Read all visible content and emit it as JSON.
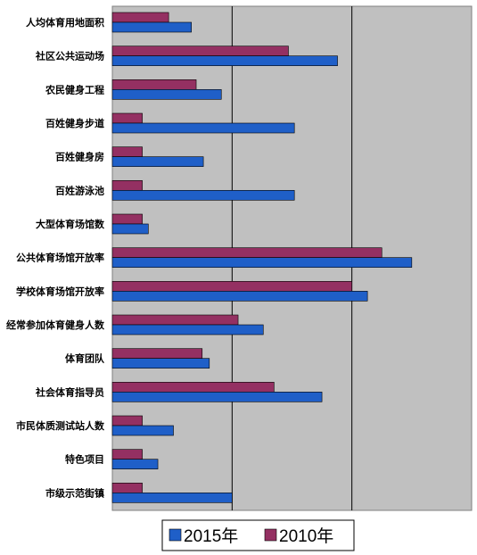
{
  "chart_data": {
    "type": "bar",
    "orientation": "horizontal",
    "categories": [
      "人均体育用地面积",
      "社区公共运动场",
      "农民健身工程",
      "百姓健身步道",
      "百姓健身房",
      "百姓游泳池",
      "大型体育场馆数",
      "公共体育场馆开放率",
      "学校体育场馆开放率",
      "经常参加体育健身人数",
      "体育团队",
      "社会体育指导员",
      "市民体质测试站人数",
      "特色项目",
      "市级示范街镇"
    ],
    "series": [
      {
        "name": "2015年",
        "color": "#1f5fc8",
        "values": [
          0.66,
          1.88,
          0.91,
          1.52,
          0.76,
          1.52,
          0.3,
          2.5,
          2.13,
          1.26,
          0.81,
          1.75,
          0.51,
          0.38,
          1.0
        ]
      },
      {
        "name": "2010年",
        "color": "#943062",
        "values": [
          0.47,
          1.47,
          0.7,
          0.25,
          0.25,
          0.25,
          0.25,
          2.25,
          2.0,
          1.05,
          0.75,
          1.35,
          0.25,
          0.25,
          0.25
        ]
      }
    ],
    "xlim": [
      0,
      3
    ],
    "grid": true,
    "legend_position": "bottom",
    "plot_background": "#c0c0c0"
  }
}
